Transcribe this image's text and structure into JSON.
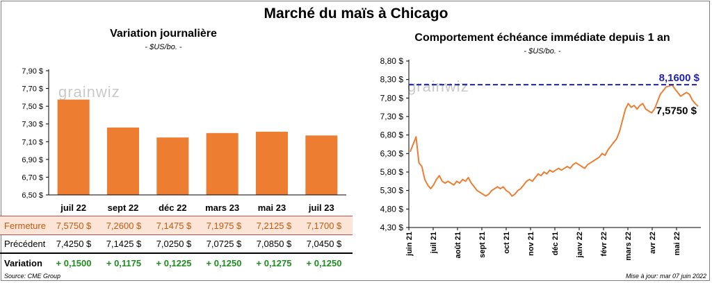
{
  "header": {
    "title": "Marché du maïs à Chicago"
  },
  "left_panel": {
    "title": "Variation  journalière",
    "units": "- $US/bo. -",
    "watermark": "grainwiz"
  },
  "right_panel": {
    "title": "Comportement  échéance immédiate depuis 1 an",
    "units": "- $US/bo. -",
    "watermark": "grainwiz"
  },
  "table": {
    "rows": [
      {
        "label": "Fermeture",
        "values": [
          "7,5750  $",
          "7,2600  $",
          "7,1475  $",
          "7,1975  $",
          "7,2125  $",
          "7,1700  $"
        ]
      },
      {
        "label": "Précédent",
        "values": [
          "7,4250  $",
          "7,1425  $",
          "7,0250  $",
          "7,0725  $",
          "7,0850  $",
          "7,0450  $"
        ]
      },
      {
        "label": "Variation",
        "values": [
          "+ 0,1500",
          "+ 0,1175",
          "+ 0,1225",
          "+ 0,1250",
          "+ 0,1275",
          "+ 0,1250"
        ]
      }
    ]
  },
  "footer": {
    "source": "Source: CME Group",
    "update": "Mise à jour: mar 07 juin 2022"
  },
  "colors": {
    "bar": "#ed7d31",
    "line": "#ed7d31",
    "reference": "#1f1fb4",
    "positive": "#1e8c1e"
  },
  "chart_data": [
    {
      "type": "bar",
      "categories": [
        "juil 22",
        "sept 22",
        "déc 22",
        "mars 23",
        "mai 23",
        "juil 23"
      ],
      "values": [
        7.575,
        7.26,
        7.1475,
        7.1975,
        7.2125,
        7.17
      ],
      "ylim": [
        6.5,
        7.9
      ],
      "yticks": [
        "7,90 $",
        "7,70 $",
        "7,50 $",
        "7,30 $",
        "7,10 $",
        "6,90 $",
        "6,70 $",
        "6,50 $"
      ],
      "grid": false
    },
    {
      "type": "line",
      "x_labels": [
        "juin 21",
        "juil 21",
        "août 21",
        "sept 21",
        "oct 21",
        "nov 21",
        "déc 21",
        "janv 22",
        "févr 22",
        "mars 22",
        "avr 22",
        "mai 22"
      ],
      "ylim": [
        4.3,
        8.8
      ],
      "yticks": [
        "8,80 $",
        "8,30 $",
        "7,80 $",
        "7,30 $",
        "6,80 $",
        "6,30 $",
        "5,80 $",
        "5,30 $",
        "4,80 $",
        "4,30 $"
      ],
      "reference": {
        "value": 8.16,
        "label": "8,1600 $"
      },
      "last": {
        "value": 7.575,
        "label": "7,5750 $"
      },
      "series": [
        {
          "values": [
            6.35,
            6.55,
            6.75,
            6.05,
            5.95,
            5.6,
            5.45,
            5.35,
            5.45,
            5.6,
            5.7,
            5.55,
            5.5,
            5.55,
            5.5,
            5.45,
            5.55,
            5.5,
            5.6,
            5.55,
            5.65,
            5.5,
            5.4,
            5.3,
            5.25,
            5.2,
            5.15,
            5.2,
            5.3,
            5.35,
            5.4,
            5.35,
            5.4,
            5.3,
            5.25,
            5.15,
            5.2,
            5.3,
            5.35,
            5.45,
            5.55,
            5.6,
            5.55,
            5.65,
            5.75,
            5.7,
            5.8,
            5.75,
            5.85,
            5.8,
            5.85,
            5.9,
            5.85,
            5.9,
            5.95,
            5.9,
            6.0,
            6.05,
            6.0,
            5.95,
            5.9,
            6.0,
            6.05,
            6.1,
            6.15,
            6.2,
            6.3,
            6.25,
            6.4,
            6.5,
            6.6,
            6.7,
            6.9,
            7.2,
            7.5,
            7.65,
            7.55,
            7.6,
            7.5,
            7.6,
            7.65,
            7.5,
            7.45,
            7.4,
            7.5,
            7.7,
            7.9,
            8.0,
            8.1,
            8.12,
            8.16,
            8.05,
            7.95,
            7.85,
            7.9,
            7.95,
            7.9,
            7.75,
            7.65,
            7.575
          ]
        }
      ]
    }
  ]
}
